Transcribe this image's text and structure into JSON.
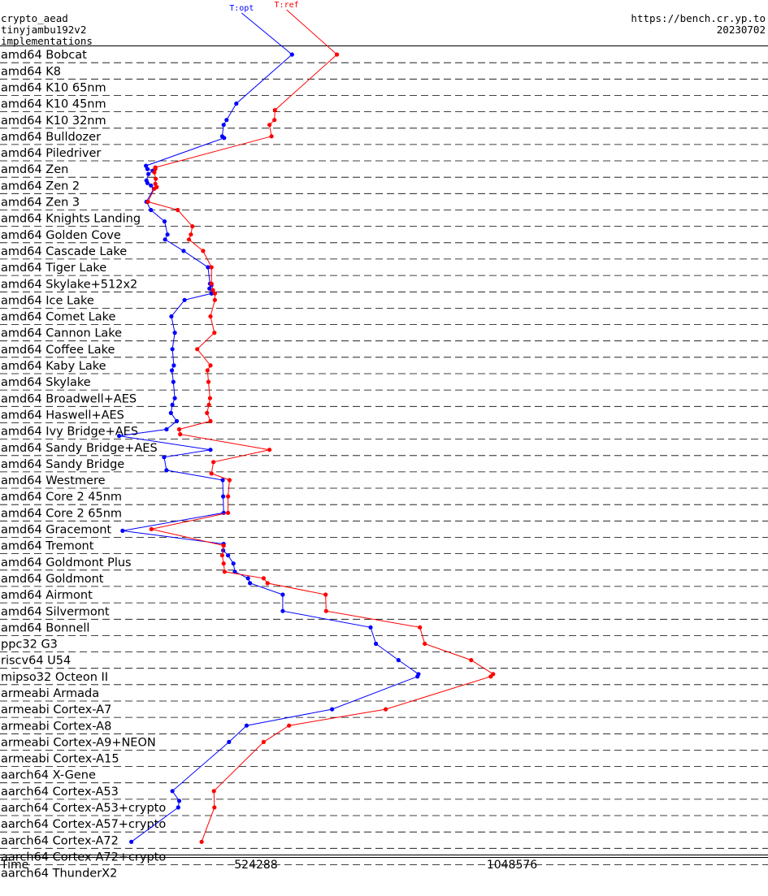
{
  "header": {
    "title_lines": [
      "crypto_aead",
      "tinyjambu192v2",
      "implementations"
    ],
    "site": "https://bench.cr.yp.to",
    "date": "20230702"
  },
  "chart_data": {
    "type": "line",
    "xlabel": "Time",
    "xticks": [
      {
        "label": "Time",
        "value": 0
      },
      {
        "label": "524288",
        "value": 524288
      },
      {
        "label": "1048576",
        "value": 1048576
      }
    ],
    "xlim": [
      0,
      1572864
    ],
    "categories": [
      "amd64 Bobcat",
      "amd64 K8",
      "amd64 K10 65nm",
      "amd64 K10 45nm",
      "amd64 K10 32nm",
      "amd64 Bulldozer",
      "amd64 Piledriver",
      "amd64 Zen",
      "amd64 Zen 2",
      "amd64 Zen 3",
      "amd64 Knights Landing",
      "amd64 Golden Cove",
      "amd64 Cascade Lake",
      "amd64 Tiger Lake",
      "amd64 Skylake+512x2",
      "amd64 Ice Lake",
      "amd64 Comet Lake",
      "amd64 Cannon Lake",
      "amd64 Coffee Lake",
      "amd64 Kaby Lake",
      "amd64 Skylake",
      "amd64 Broadwell+AES",
      "amd64 Haswell+AES",
      "amd64 Ivy Bridge+AES",
      "amd64 Sandy Bridge+AES",
      "amd64 Sandy Bridge",
      "amd64 Westmere",
      "amd64 Core 2 45nm",
      "amd64 Core 2 65nm",
      "amd64 Gracemont",
      "amd64 Tremont",
      "amd64 Goldmont Plus",
      "amd64 Goldmont",
      "amd64 Airmont",
      "amd64 Silvermont",
      "amd64 Bonnell",
      "ppc32 G3",
      "riscv64 U54",
      "mipso32 Octeon II",
      "armeabi Armada",
      "armeabi Cortex-A7",
      "armeabi Cortex-A8",
      "armeabi Cortex-A9+NEON",
      "armeabi Cortex-A15",
      "aarch64 X-Gene",
      "aarch64 Cortex-A53",
      "aarch64 Cortex-A53+crypto",
      "aarch64 Cortex-A57+crypto",
      "aarch64 Cortex-A72",
      "aarch64 Cortex-A72+crypto",
      "aarch64 ThunderX2"
    ],
    "series": [
      {
        "name": "T:opt",
        "color": "#0000ff",
        "values": [
          {
            "row": 0,
            "x": 598000
          },
          {
            "row": 3,
            "x": 484000
          },
          {
            "row": 4,
            "x": 464000
          },
          {
            "row": 4.3,
            "x": 458000
          },
          {
            "row": 5,
            "x": 455000
          },
          {
            "row": 5.1,
            "x": 459000
          },
          {
            "row": 6.8,
            "x": 299000
          },
          {
            "row": 7,
            "x": 302000
          },
          {
            "row": 7.1,
            "x": 313000
          },
          {
            "row": 7.3,
            "x": 304000
          },
          {
            "row": 7.7,
            "x": 300000
          },
          {
            "row": 7.85,
            "x": 302000
          },
          {
            "row": 8,
            "x": 309000
          },
          {
            "row": 8.2,
            "x": 315000
          },
          {
            "row": 9,
            "x": 300000
          },
          {
            "row": 9.5,
            "x": 309000
          },
          {
            "row": 10.2,
            "x": 337000
          },
          {
            "row": 11,
            "x": 343000
          },
          {
            "row": 11.3,
            "x": 338000
          },
          {
            "row": 12,
            "x": 376000
          },
          {
            "row": 13,
            "x": 426000
          },
          {
            "row": 14,
            "x": 430000
          },
          {
            "row": 14.1,
            "x": 433000
          },
          {
            "row": 14.3,
            "x": 429000
          },
          {
            "row": 14.6,
            "x": 433000
          },
          {
            "row": 15,
            "x": 378000
          },
          {
            "row": 16,
            "x": 351000
          },
          {
            "row": 17,
            "x": 358000
          },
          {
            "row": 18,
            "x": 353000
          },
          {
            "row": 19,
            "x": 356000
          },
          {
            "row": 19.3,
            "x": 352000
          },
          {
            "row": 20,
            "x": 355000
          },
          {
            "row": 21,
            "x": 358000
          },
          {
            "row": 21.4,
            "x": 353000
          },
          {
            "row": 21.9,
            "x": 350000
          },
          {
            "row": 22.4,
            "x": 362000
          },
          {
            "row": 22.9,
            "x": 341000
          },
          {
            "row": 23.3,
            "x": 244000
          },
          {
            "row": 24.15,
            "x": 431000
          },
          {
            "row": 24.6,
            "x": 336000
          },
          {
            "row": 25.4,
            "x": 341000
          },
          {
            "row": 26,
            "x": 456000
          },
          {
            "row": 27,
            "x": 457000
          },
          {
            "row": 28,
            "x": 458000
          },
          {
            "row": 29.1,
            "x": 251000
          },
          {
            "row": 29.9,
            "x": 458000
          },
          {
            "row": 30.3,
            "x": 457000
          },
          {
            "row": 30.6,
            "x": 467000
          },
          {
            "row": 31.1,
            "x": 478000
          },
          {
            "row": 31.6,
            "x": 481000
          },
          {
            "row": 32,
            "x": 508000
          },
          {
            "row": 32.3,
            "x": 512000
          },
          {
            "row": 33,
            "x": 579000
          },
          {
            "row": 34,
            "x": 579000
          },
          {
            "row": 35,
            "x": 759000
          },
          {
            "row": 36,
            "x": 770000
          },
          {
            "row": 37,
            "x": 816000
          },
          {
            "row": 37.85,
            "x": 857000
          },
          {
            "row": 38,
            "x": 855000
          },
          {
            "row": 40,
            "x": 680000
          },
          {
            "row": 41,
            "x": 505000
          },
          {
            "row": 42,
            "x": 469000
          },
          {
            "row": 45,
            "x": 353000
          },
          {
            "row": 45.6,
            "x": 367000
          },
          {
            "row": 46,
            "x": 365000
          },
          {
            "row": 48.1,
            "x": 269000
          }
        ]
      },
      {
        "name": "T:ref",
        "color": "#ff0000",
        "values": [
          {
            "row": 0,
            "x": 690000
          },
          {
            "row": 3.4,
            "x": 563000
          },
          {
            "row": 4,
            "x": 562000
          },
          {
            "row": 4.3,
            "x": 552000
          },
          {
            "row": 5,
            "x": 556000
          },
          {
            "row": 6.9,
            "x": 318000
          },
          {
            "row": 7,
            "x": 318000
          },
          {
            "row": 7.2,
            "x": 316000
          },
          {
            "row": 7.6,
            "x": 319000
          },
          {
            "row": 7.9,
            "x": 318000
          },
          {
            "row": 8.1,
            "x": 321000
          },
          {
            "row": 8.2,
            "x": 316000
          },
          {
            "row": 9,
            "x": 303000
          },
          {
            "row": 9.5,
            "x": 364000
          },
          {
            "row": 10.5,
            "x": 394000
          },
          {
            "row": 11,
            "x": 391000
          },
          {
            "row": 11.3,
            "x": 387000
          },
          {
            "row": 12,
            "x": 416000
          },
          {
            "row": 13,
            "x": 433000
          },
          {
            "row": 14,
            "x": 433000
          },
          {
            "row": 14.4,
            "x": 436000
          },
          {
            "row": 14.6,
            "x": 440000
          },
          {
            "row": 15,
            "x": 440000
          },
          {
            "row": 16,
            "x": 431000
          },
          {
            "row": 17,
            "x": 439000
          },
          {
            "row": 18,
            "x": 404000
          },
          {
            "row": 19,
            "x": 431000
          },
          {
            "row": 19.3,
            "x": 425000
          },
          {
            "row": 20,
            "x": 427000
          },
          {
            "row": 21,
            "x": 430000
          },
          {
            "row": 21.4,
            "x": 428000
          },
          {
            "row": 21.9,
            "x": 424000
          },
          {
            "row": 22.4,
            "x": 431000
          },
          {
            "row": 22.9,
            "x": 367000
          },
          {
            "row": 23.2,
            "x": 369000
          },
          {
            "row": 24.15,
            "x": 552000
          },
          {
            "row": 24.9,
            "x": 437000
          },
          {
            "row": 25.6,
            "x": 433000
          },
          {
            "row": 26,
            "x": 470000
          },
          {
            "row": 27,
            "x": 467000
          },
          {
            "row": 28,
            "x": 467000
          },
          {
            "row": 29,
            "x": 310000
          },
          {
            "row": 30,
            "x": 458000
          },
          {
            "row": 30.6,
            "x": 455000
          },
          {
            "row": 31.1,
            "x": 458000
          },
          {
            "row": 31.6,
            "x": 460000
          },
          {
            "row": 32,
            "x": 540000
          },
          {
            "row": 32.3,
            "x": 548000
          },
          {
            "row": 33,
            "x": 667000
          },
          {
            "row": 34,
            "x": 668000
          },
          {
            "row": 35,
            "x": 860000
          },
          {
            "row": 36,
            "x": 870000
          },
          {
            "row": 37,
            "x": 965000
          },
          {
            "row": 37.85,
            "x": 1010000
          },
          {
            "row": 38,
            "x": 1005000
          },
          {
            "row": 40,
            "x": 790000
          },
          {
            "row": 41,
            "x": 592000
          },
          {
            "row": 42,
            "x": 540000
          },
          {
            "row": 45,
            "x": 438000
          },
          {
            "row": 46,
            "x": 439000
          },
          {
            "row": 48.1,
            "x": 413000
          }
        ]
      }
    ]
  }
}
